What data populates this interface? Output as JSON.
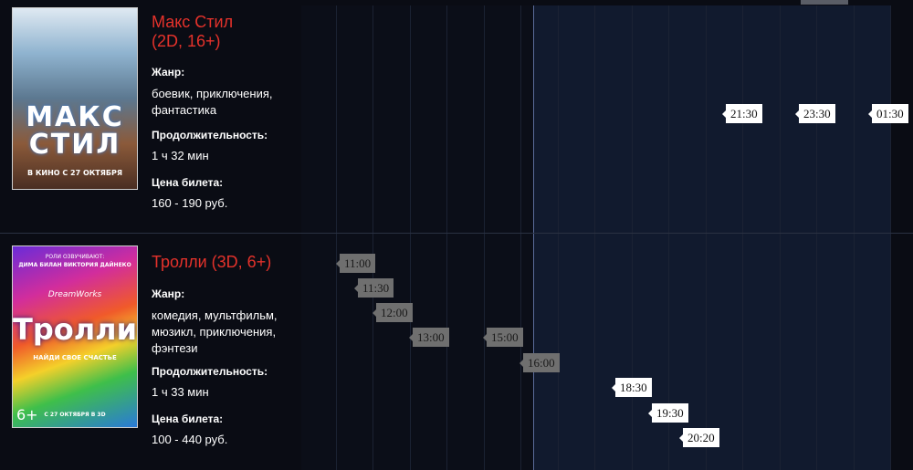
{
  "movies": [
    {
      "title": "Макс Стил\n(2D, 16+)",
      "poster": {
        "title": "МАКС СТИЛ",
        "caption": "В КИНО С 27 ОКТЯБРЯ"
      },
      "genre_label": "Жанр:",
      "genre": "боевик, приключения, фантастика",
      "duration_label": "Продолжительность:",
      "duration": "1 ч 32 мин",
      "price_label": "Цена билета:",
      "price": "160 - 190 руб.",
      "showtimes": [
        {
          "time": "21:30",
          "status": "upcoming"
        },
        {
          "time": "23:30",
          "status": "upcoming"
        },
        {
          "time": "01:30",
          "status": "upcoming"
        }
      ]
    },
    {
      "title": "Тролли (3D, 6+)",
      "poster": {
        "voice_label": "РОЛИ ОЗВУЧИВАЮТ:",
        "voices": "ДИМА БИЛАН   ВИКТОРИЯ ДАЙНЕКО",
        "studio": "DreamWorks",
        "title": "Тролли",
        "tagline": "НАЙДИ СВОЕ СЧАСТЬЕ",
        "rating": "6+",
        "caption": "С 27 ОКТЯБРЯ В 3D"
      },
      "genre_label": "Жанр:",
      "genre": "комедия, мультфильм, мюзикл, приключения, фэнтези",
      "duration_label": "Продолжительность:",
      "duration": "1 ч 33 мин",
      "price_label": "Цена билета:",
      "price": "100 - 440 руб.",
      "showtimes": [
        {
          "time": "11:00",
          "status": "past"
        },
        {
          "time": "11:30",
          "status": "past"
        },
        {
          "time": "12:00",
          "status": "past"
        },
        {
          "time": "13:00",
          "status": "past"
        },
        {
          "time": "15:00",
          "status": "past"
        },
        {
          "time": "16:00",
          "status": "past"
        },
        {
          "time": "18:30",
          "status": "upcoming"
        },
        {
          "time": "19:30",
          "status": "upcoming"
        },
        {
          "time": "20:20",
          "status": "upcoming"
        }
      ]
    }
  ],
  "colors": {
    "title_red": "#e5322b",
    "past_slot": "#6f6f6f",
    "upcoming_slot": "#ffffff",
    "background": "#0a0c14",
    "future_area": "#111a2e"
  }
}
